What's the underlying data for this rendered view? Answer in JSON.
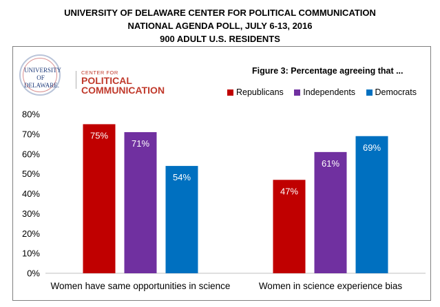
{
  "header": {
    "line1": "UNIVERSITY OF DELAWARE CENTER FOR POLITICAL COMMUNICATION",
    "line2": "NATIONAL AGENDA POLL, JULY 6-13, 2016",
    "line3": "900 ADULT U.S. RESIDENTS"
  },
  "logo": {
    "seal_line1": "UNIVERSITY OF",
    "seal_line2": "DELAWARE.",
    "small_text": "CENTER FOR",
    "big_line1": "POLITICAL",
    "big_line2": "COMMUNICATION"
  },
  "colors": {
    "republicans": "#c00000",
    "independents": "#7030a0",
    "democrats": "#0070c0"
  },
  "chart_data": {
    "type": "bar",
    "title": "Figure 3: Percentage agreeing that ...",
    "categories": [
      "Women have same opportunities in science",
      "Women in science experience bias"
    ],
    "series": [
      {
        "name": "Republicans",
        "values": [
          75,
          47
        ]
      },
      {
        "name": "Independents",
        "values": [
          71,
          61
        ]
      },
      {
        "name": "Democrats",
        "values": [
          54,
          69
        ]
      }
    ],
    "data_labels": [
      [
        "75%",
        "47%"
      ],
      [
        "71%",
        "61%"
      ],
      [
        "54%",
        "69%"
      ]
    ],
    "ylim": [
      0,
      80
    ],
    "yticks": [
      "0%",
      "10%",
      "20%",
      "30%",
      "40%",
      "50%",
      "60%",
      "70%",
      "80%"
    ],
    "legend_position": "top-right",
    "grid": false
  }
}
